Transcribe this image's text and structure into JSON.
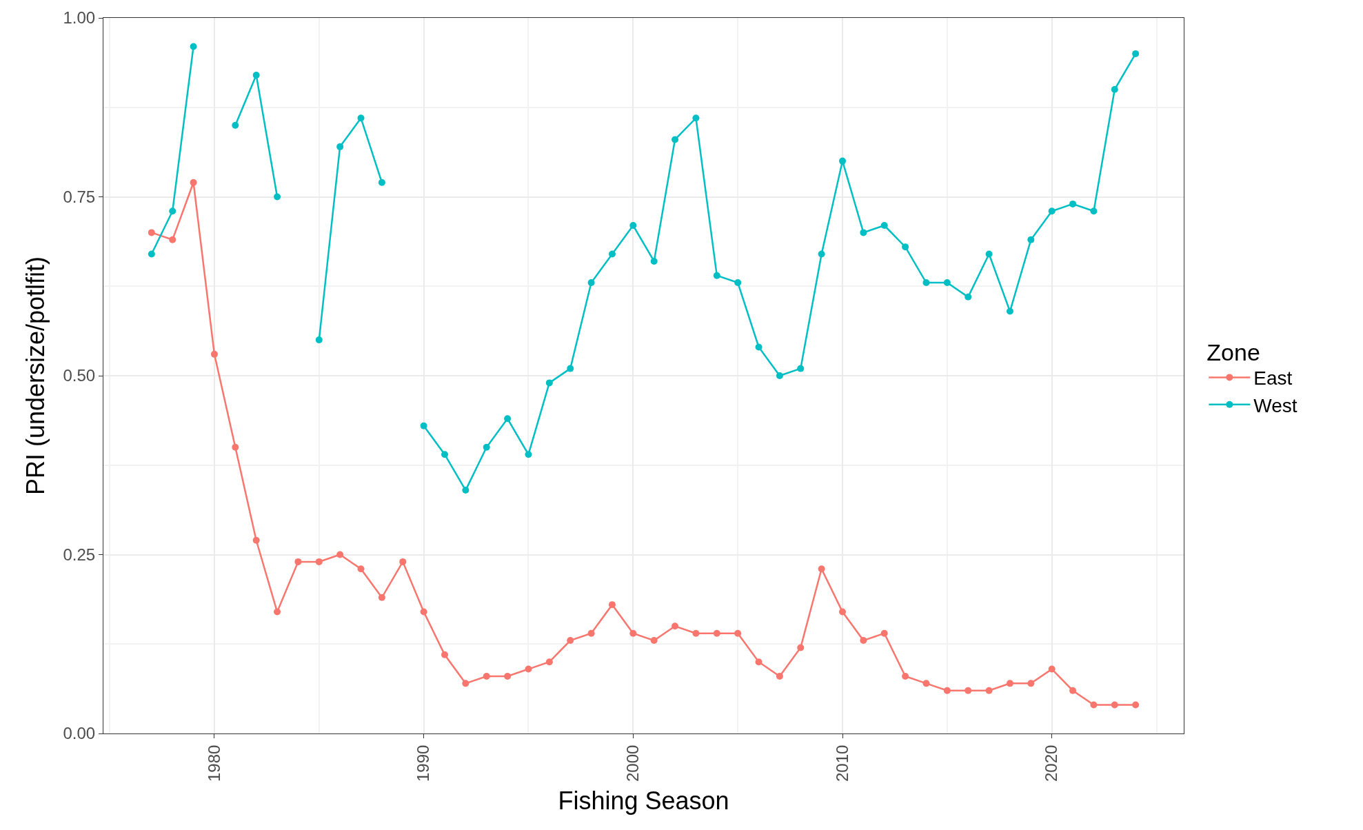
{
  "chart_data": {
    "type": "line",
    "xlabel": "Fishing Season",
    "ylabel": "PRI (undersize/potlfit)",
    "legend_title": "Zone",
    "x": [
      1977,
      1978,
      1979,
      1980,
      1981,
      1982,
      1983,
      1984,
      1985,
      1986,
      1987,
      1988,
      1989,
      1990,
      1991,
      1992,
      1993,
      1994,
      1995,
      1996,
      1997,
      1998,
      1999,
      2000,
      2001,
      2002,
      2003,
      2004,
      2005,
      2006,
      2007,
      2008,
      2009,
      2010,
      2011,
      2012,
      2013,
      2014,
      2015,
      2016,
      2017,
      2018,
      2019,
      2020,
      2021,
      2022,
      2023,
      2024
    ],
    "series": [
      {
        "name": "East",
        "color": "#f8766d",
        "values": [
          0.7,
          0.69,
          0.77,
          0.53,
          0.4,
          0.27,
          0.17,
          0.24,
          0.24,
          0.25,
          0.23,
          0.19,
          0.24,
          0.17,
          0.11,
          0.07,
          0.08,
          0.08,
          0.09,
          0.1,
          0.13,
          0.14,
          0.18,
          0.14,
          0.13,
          0.15,
          0.14,
          0.14,
          0.14,
          0.1,
          0.08,
          0.12,
          0.23,
          0.17,
          0.13,
          0.14,
          0.08,
          0.07,
          0.06,
          0.06,
          0.06,
          0.07,
          0.07,
          0.09,
          0.06,
          0.04,
          0.04,
          0.04
        ]
      },
      {
        "name": "West",
        "color": "#00bfc4",
        "values": [
          0.67,
          0.73,
          0.96,
          null,
          0.85,
          0.92,
          0.75,
          null,
          0.55,
          0.82,
          0.86,
          0.77,
          null,
          0.43,
          0.39,
          0.34,
          0.4,
          0.44,
          0.39,
          0.49,
          0.51,
          0.63,
          0.67,
          0.71,
          0.66,
          0.83,
          0.86,
          0.64,
          0.63,
          0.54,
          0.5,
          0.51,
          0.67,
          0.8,
          0.7,
          0.71,
          0.68,
          0.63,
          0.63,
          0.61,
          0.67,
          0.59,
          0.69,
          0.73,
          0.74,
          0.73,
          0.9,
          0.95
        ]
      }
    ],
    "xlim": [
      1974.7,
      2026.3
    ],
    "ylim": [
      0,
      1
    ],
    "xticks": [
      1980,
      1990,
      2000,
      2010,
      2020
    ],
    "yticks": [
      {
        "value": 0,
        "label": "0.00"
      },
      {
        "value": 0.25,
        "label": "0.25"
      },
      {
        "value": 0.5,
        "label": "0.50"
      },
      {
        "value": 0.75,
        "label": "0.75"
      },
      {
        "value": 1,
        "label": "1.00"
      }
    ],
    "grid": true,
    "legend": "right",
    "marker": "circle",
    "line_style": "solid"
  }
}
